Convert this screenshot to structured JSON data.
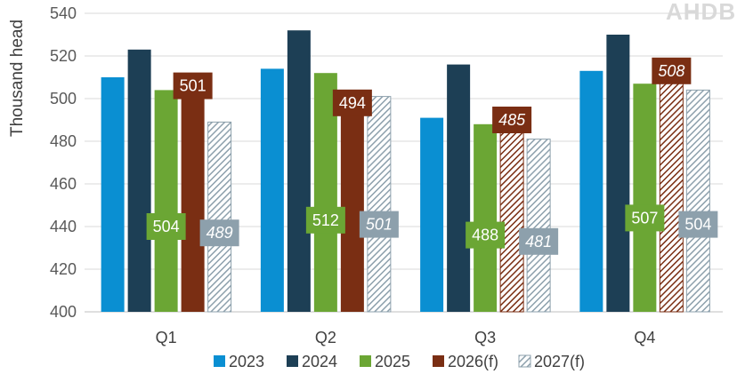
{
  "brand": {
    "logo_text": "AHDB"
  },
  "colors": {
    "2023": "#0a8fd2",
    "2024": "#1d3f55",
    "2025": "#6ba634",
    "2026(f)": "#7a2e13",
    "2027(f)": "#8da0ac",
    "grid": "#d9d9d9",
    "axis_text": "#595959"
  },
  "chart_data": {
    "type": "bar",
    "ylabel": "Thousand head",
    "xlabel": "",
    "ylim": [
      400,
      540
    ],
    "yticks": [
      400,
      420,
      440,
      460,
      480,
      500,
      520,
      540
    ],
    "grid": true,
    "legend_position": "bottom",
    "categories": [
      "Q1",
      "Q2",
      "Q3",
      "Q4"
    ],
    "series": [
      {
        "name": "2023",
        "values": [
          510,
          514,
          491,
          513
        ],
        "pattern": "solid",
        "show_labels": false
      },
      {
        "name": "2024",
        "values": [
          523,
          532,
          516,
          530
        ],
        "pattern": "solid",
        "show_labels": false
      },
      {
        "name": "2025",
        "values": [
          504,
          512,
          488,
          507
        ],
        "pattern": "solid",
        "show_labels": true,
        "label_italic": false
      },
      {
        "name": "2026(f)",
        "values": [
          501,
          494,
          485,
          508
        ],
        "pattern_by_category": [
          "solid",
          "solid",
          "hatched",
          "hatched"
        ],
        "show_labels": true,
        "label_italic_by_category": [
          false,
          false,
          true,
          true
        ]
      },
      {
        "name": "2027(f)",
        "values": [
          489,
          501,
          481,
          504
        ],
        "pattern": "hatched",
        "show_labels": true,
        "label_italic_by_category": [
          true,
          true,
          true,
          false
        ]
      }
    ]
  }
}
